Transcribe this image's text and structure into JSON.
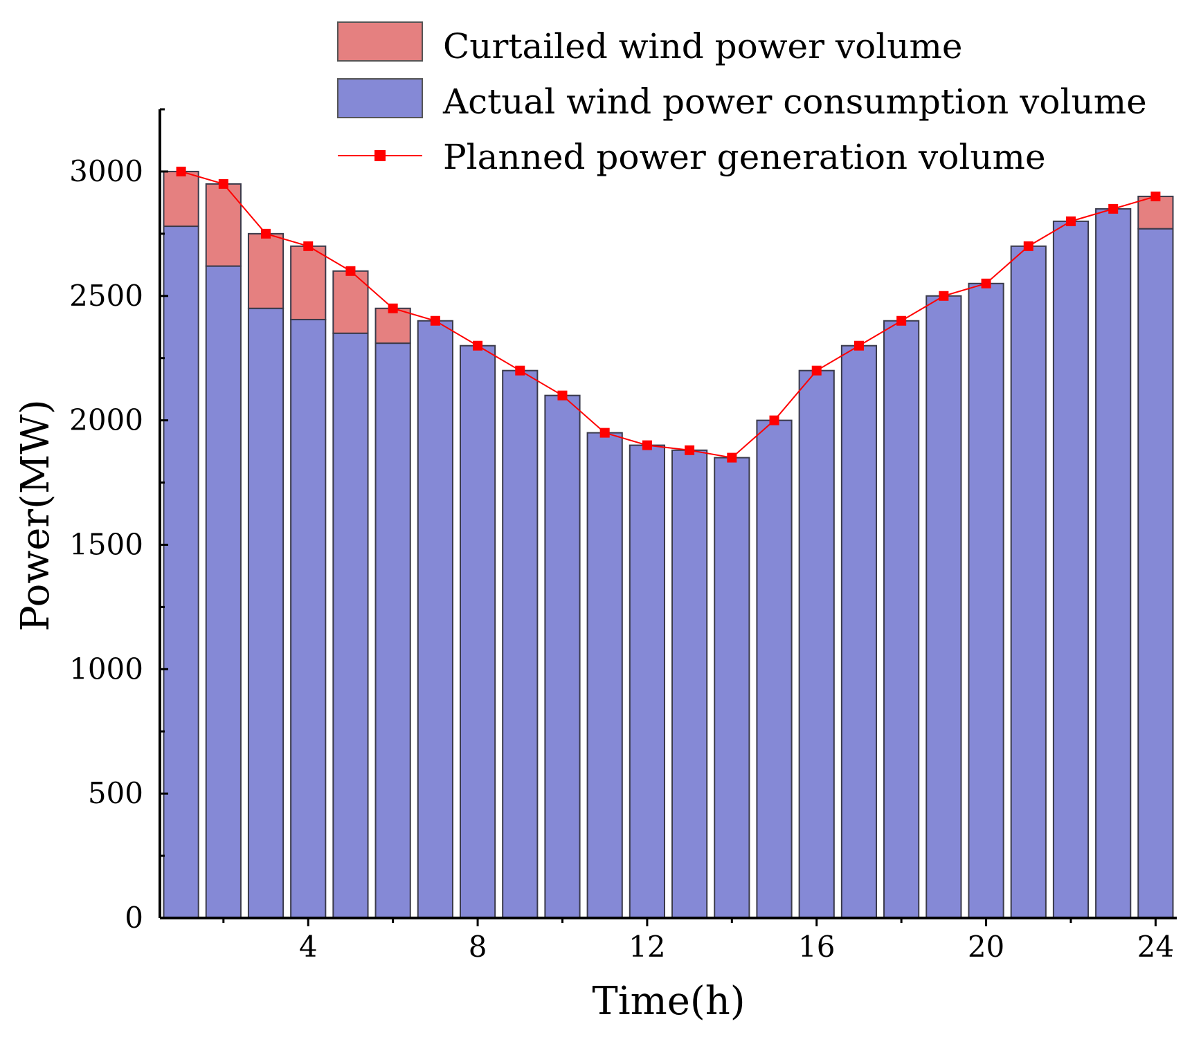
{
  "chart_data": {
    "type": "bar",
    "stacked": true,
    "title": "",
    "xlabel": "Time(h)",
    "ylabel": "Power(MW)",
    "xlim": [
      0.5,
      24.5
    ],
    "ylim": [
      0,
      3250
    ],
    "x": [
      1,
      2,
      3,
      4,
      5,
      6,
      7,
      8,
      9,
      10,
      11,
      12,
      13,
      14,
      15,
      16,
      17,
      18,
      19,
      20,
      21,
      22,
      23,
      24
    ],
    "xticks": [
      4,
      8,
      12,
      16,
      20,
      24
    ],
    "yticks": [
      0,
      500,
      1000,
      1500,
      2000,
      2500,
      3000
    ],
    "legend_position": "top-right",
    "series": [
      {
        "name": "Actual wind power consumption volume",
        "kind": "bar",
        "color": "#8589d6",
        "values": [
          2780,
          2620,
          2450,
          2405,
          2350,
          2310,
          2400,
          2300,
          2200,
          2100,
          1950,
          1900,
          1880,
          1850,
          2000,
          2200,
          2300,
          2400,
          2500,
          2550,
          2700,
          2800,
          2850,
          2770
        ]
      },
      {
        "name": "Curtailed wind power volume",
        "kind": "bar",
        "color": "#e58080",
        "values": [
          220,
          330,
          300,
          295,
          250,
          140,
          0,
          0,
          0,
          0,
          0,
          0,
          0,
          0,
          0,
          0,
          0,
          0,
          0,
          0,
          0,
          0,
          0,
          130
        ]
      },
      {
        "name": "Planned power generation volume",
        "kind": "line",
        "color": "#ff0000",
        "values": [
          3000,
          2950,
          2750,
          2700,
          2600,
          2450,
          2400,
          2300,
          2200,
          2100,
          1950,
          1900,
          1880,
          1850,
          2000,
          2200,
          2300,
          2400,
          2500,
          2550,
          2700,
          2800,
          2850,
          2900
        ]
      }
    ]
  }
}
